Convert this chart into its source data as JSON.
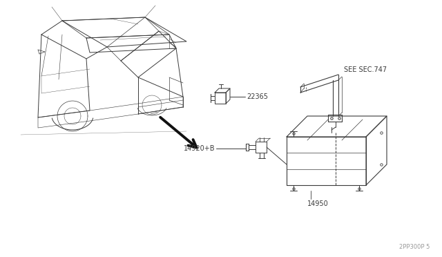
{
  "bg_color": "#ffffff",
  "line_color": "#404040",
  "watermark": "2PP300P 5",
  "labels": {
    "see_sec": "SEE SEC.747",
    "part1": "22365",
    "part2": "14920+B",
    "part3": "14950"
  },
  "figsize": [
    6.4,
    3.72
  ],
  "dpi": 100
}
